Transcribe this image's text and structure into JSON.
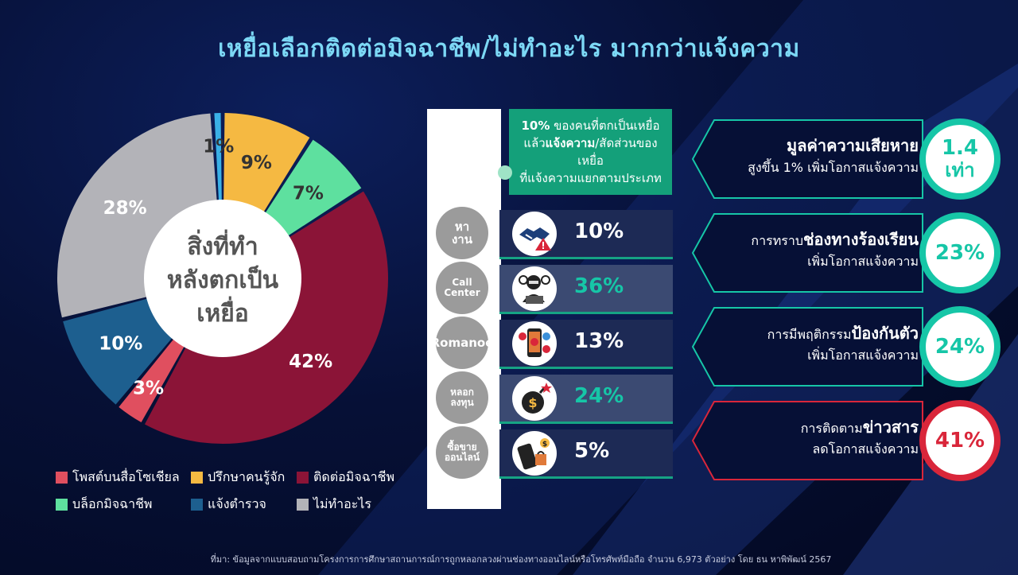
{
  "title": "เหยื่อเลือกติดต่อมิจฉาชีพ/ไม่ทำอะไร มากกว่าแจ้งความ",
  "pie_center": [
    "สิ่งที่ทำ",
    "หลังตกเป็น",
    "เหยื่อ"
  ],
  "chart_data": [
    {
      "type": "pie",
      "slices": [
        {
          "label": "ปรึกษาคนรู้จัก",
          "value": 9,
          "display": "9%",
          "color": "#f5b942"
        },
        {
          "label": "บล็อกมิจฉาชีพ",
          "value": 7,
          "display": "7%",
          "color": "#5ee09f"
        },
        {
          "label": "ติดต่อมิจฉาชีพ",
          "value": 42,
          "display": "42%",
          "color": "#8b1437"
        },
        {
          "label": "โพสต์บนสื่อโซเชียล",
          "value": 3,
          "display": "3%",
          "color": "#e04f5f"
        },
        {
          "label": "แจ้งตำรวจ",
          "value": 10,
          "display": "10%",
          "color": "#1d5f8f"
        },
        {
          "label": "ไม่ทำอะไร",
          "value": 28,
          "display": "28%",
          "color": "#b3b3b8"
        },
        {
          "label": "",
          "value": 1,
          "display": "1%",
          "color": "#3ab0e6"
        }
      ],
      "legend": [
        {
          "label": "โพสต์บนสื่อโซเชียล",
          "color": "#e04f5f"
        },
        {
          "label": "ปรึกษาคนรู้จัก",
          "color": "#f5b942"
        },
        {
          "label": "ติดต่อมิจฉาชีพ",
          "color": "#8b1437"
        },
        {
          "label": "บล็อกมิจฉาชีพ",
          "color": "#5ee09f"
        },
        {
          "label": "แจ้งตำรวจ",
          "color": "#1d5f8f"
        },
        {
          "label": "ไม่ทำอะไร",
          "color": "#b3b3b8"
        }
      ]
    },
    {
      "type": "table",
      "rows": [
        {
          "category": "หา\nงาน",
          "value": 10,
          "display": "10%",
          "icon": "handshake-warning-icon"
        },
        {
          "category": "Call\nCenter",
          "value": 36,
          "display": "36%",
          "icon": "hacker-laptop-icon"
        },
        {
          "category": "Romanoe",
          "value": 13,
          "display": "13%",
          "icon": "phone-heart-icon"
        },
        {
          "category": "หลอก\nลงทุน",
          "value": 24,
          "display": "24%",
          "icon": "money-bomb-icon"
        },
        {
          "category": "ซื้อขาย\nออนไลน์",
          "value": 5,
          "display": "5%",
          "icon": "phone-shopping-icon"
        }
      ]
    }
  ],
  "callout": {
    "pct": "10%",
    "line1": " ของคนที่ตกเป็นเหยื่อ",
    "line2a": "แล้ว",
    "line2b": "แจ้งความ",
    "line2c": "/สัดส่วนของเหยื่อ",
    "line3": "ที่แจ้งความแยกตามประเภท"
  },
  "factors": [
    {
      "bold": "มูลค่าความเสียหาย",
      "pre": "",
      "sub": "สูงขึ้น 1% เพิ่มโอกาสแจ้งความ",
      "value1": "1.4",
      "value2": "เท่า",
      "color": "#16c6a7"
    },
    {
      "pre": "การทราบ",
      "bold": "ช่องทางร้องเรียน",
      "sub": "เพิ่มโอกาสแจ้งความ",
      "value1": "23%",
      "value2": "",
      "color": "#16c6a7"
    },
    {
      "pre": "การมีพฤติกรรม",
      "bold": "ป้องกันตัว",
      "sub": "เพิ่มโอกาสแจ้งความ",
      "value1": "24%",
      "value2": "",
      "color": "#16c6a7"
    },
    {
      "pre": "การติดตาม",
      "bold": "ข่าวสาร",
      "sub": "ลดโอกาสแจ้งความ",
      "value1": "41%",
      "value2": "",
      "color": "#d9263a"
    }
  ],
  "source": "ที่มา: ข้อมูลจากแบบสอบถามโครงการการศึกษาสถานการณ์การถูกหลอกลวงผ่านช่องทางออนไลน์หรือโทรศัพท์มือถือ จำนวน 6,973 ตัวอย่าง โดย ธน หาพิพัฒน์ 2567"
}
